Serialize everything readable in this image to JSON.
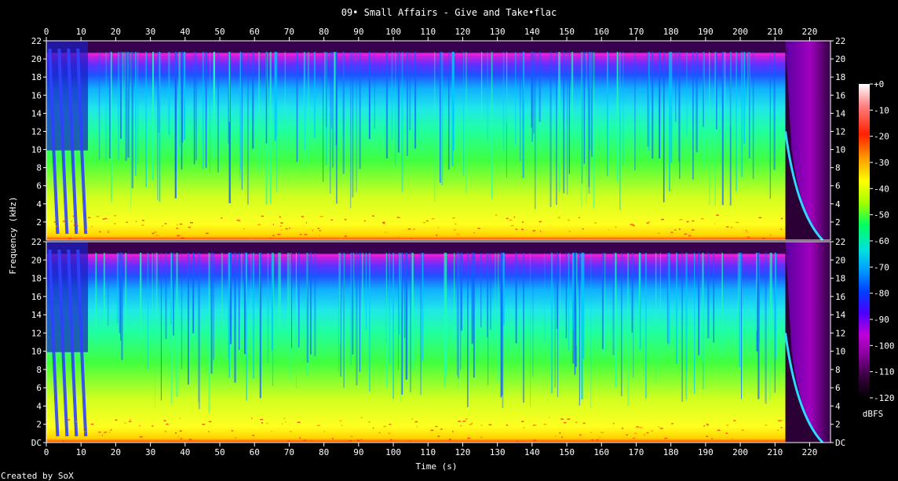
{
  "chart_data": {
    "type": "heatmap",
    "title": "09• Small Affairs - Give and Take•flac",
    "xlabel": "Time (s)",
    "ylabel": "Frequency (kHz)",
    "xlim": [
      0,
      226
    ],
    "ylim_khz": [
      0,
      22
    ],
    "x_ticks": [
      0,
      10,
      20,
      30,
      40,
      50,
      60,
      70,
      80,
      90,
      100,
      110,
      120,
      130,
      140,
      150,
      160,
      170,
      180,
      190,
      200,
      210,
      220
    ],
    "y_ticks": [
      "DC",
      "2",
      "4",
      "6",
      "8",
      "10",
      "12",
      "14",
      "16",
      "18",
      "20",
      "22"
    ],
    "y_ticks_top_channel": [
      "2",
      "4",
      "6",
      "8",
      "10",
      "12",
      "14",
      "16",
      "18",
      "20",
      "22"
    ],
    "channels": 2,
    "colorbar": {
      "label": "dBFS",
      "ticks": [
        "+0",
        "-10",
        "-20",
        "-30",
        "-40",
        "-50",
        "-60",
        "-70",
        "-80",
        "-90",
        "-100",
        "-110",
        "-120"
      ],
      "range": [
        -120,
        0
      ],
      "colors": [
        "#000000",
        "#3a0040",
        "#8a00a0",
        "#c000d8",
        "#4b00ff",
        "#0040ff",
        "#00a0ff",
        "#00e0e0",
        "#00ff60",
        "#a0ff00",
        "#ffff00",
        "#ffa000",
        "#ff2000",
        "#ff8080",
        "#ffffff"
      ]
    },
    "music_end_s": 213,
    "lowpass_khz": 20.5,
    "footer": "Created by SoX"
  }
}
